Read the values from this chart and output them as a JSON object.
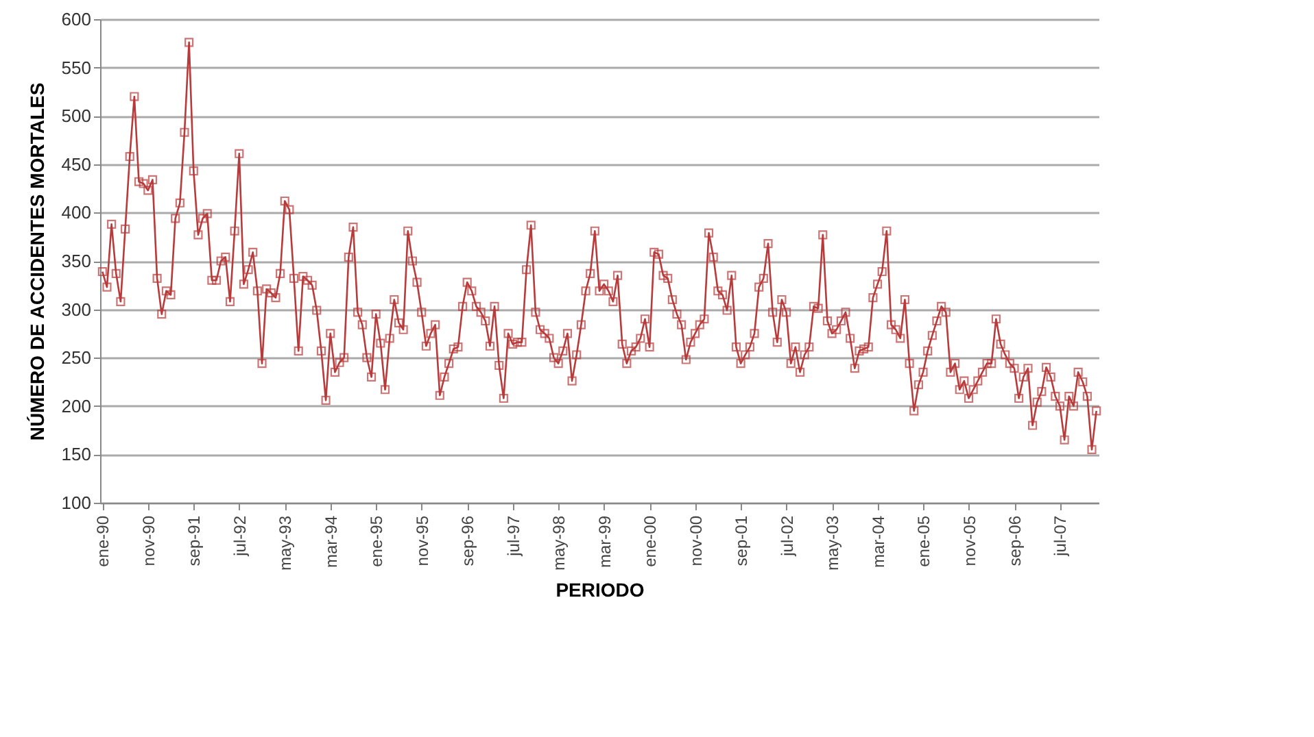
{
  "chart_data": {
    "type": "line",
    "xlabel": "PERIODO",
    "ylabel": "NÚMERO DE ACCIDENTES MORTALES",
    "categories": [
      "ene-90",
      null,
      null,
      null,
      null,
      null,
      null,
      null,
      null,
      null,
      "nov-90",
      null,
      null,
      null,
      null,
      null,
      null,
      null,
      null,
      null,
      "sep-91",
      null,
      null,
      null,
      null,
      null,
      null,
      null,
      null,
      null,
      "jul-92",
      null,
      null,
      null,
      null,
      null,
      null,
      null,
      null,
      null,
      "may-93",
      null,
      null,
      null,
      null,
      null,
      null,
      null,
      null,
      null,
      "mar-94",
      null,
      null,
      null,
      null,
      null,
      null,
      null,
      null,
      null,
      "ene-95",
      null,
      null,
      null,
      null,
      null,
      null,
      null,
      null,
      null,
      "nov-95",
      null,
      null,
      null,
      null,
      null,
      null,
      null,
      null,
      null,
      "sep-96",
      null,
      null,
      null,
      null,
      null,
      null,
      null,
      null,
      null,
      "jul-97",
      null,
      null,
      null,
      null,
      null,
      null,
      null,
      null,
      null,
      "may-98",
      null,
      null,
      null,
      null,
      null,
      null,
      null,
      null,
      null,
      "mar-99",
      null,
      null,
      null,
      null,
      null,
      null,
      null,
      null,
      null,
      "ene-00",
      null,
      null,
      null,
      null,
      null,
      null,
      null,
      null,
      null,
      "nov-00",
      null,
      null,
      null,
      null,
      null,
      null,
      null,
      null,
      null,
      "sep-01",
      null,
      null,
      null,
      null,
      null,
      null,
      null,
      null,
      null,
      "jul-02",
      null,
      null,
      null,
      null,
      null,
      null,
      null,
      null,
      null,
      "may-03",
      null,
      null,
      null,
      null,
      null,
      null,
      null,
      null,
      null,
      "mar-04",
      null,
      null,
      null,
      null,
      null,
      null,
      null,
      null,
      null,
      "ene-05",
      null,
      null,
      null,
      null,
      null,
      null,
      null,
      null,
      null,
      "nov-05",
      null,
      null,
      null,
      null,
      null,
      null,
      null,
      null,
      null,
      "sep-06",
      null,
      null,
      null,
      null,
      null,
      null,
      null,
      null,
      null,
      "jul-07",
      null,
      null,
      null,
      null,
      null,
      null,
      null,
      null
    ],
    "series": [
      {
        "color": "#b83a3a",
        "values": [
          339,
          323,
          388,
          337,
          308,
          383,
          458,
          520,
          432,
          430,
          423,
          434,
          332,
          295,
          319,
          315,
          394,
          410,
          483,
          576,
          443,
          377,
          394,
          399,
          330,
          330,
          350,
          354,
          308,
          381,
          461,
          326,
          341,
          359,
          319,
          244,
          321,
          317,
          312,
          337,
          412,
          403,
          332,
          257,
          334,
          330,
          325,
          299,
          257,
          206,
          275,
          235,
          245,
          250,
          354,
          385,
          297,
          284,
          250,
          230,
          295,
          265,
          217,
          270,
          310,
          286,
          279,
          381,
          350,
          328,
          297,
          262,
          275,
          284,
          211,
          230,
          244,
          259,
          261,
          303,
          328,
          319,
          303,
          297,
          288,
          262,
          303,
          242,
          208,
          275,
          264,
          266,
          266,
          341,
          387,
          297,
          279,
          275,
          270,
          250,
          244,
          257,
          275,
          226,
          253,
          284,
          319,
          337,
          381,
          319,
          326,
          319,
          308,
          335,
          264,
          244,
          257,
          261,
          270,
          290,
          261,
          359,
          357,
          335,
          332,
          310,
          295,
          284,
          248,
          266,
          275,
          284,
          290,
          379,
          354,
          319,
          315,
          299,
          335,
          261,
          244,
          253,
          261,
          275,
          323,
          332,
          368,
          297,
          266,
          310,
          297,
          244,
          261,
          235,
          253,
          261,
          303,
          301,
          377,
          288,
          275,
          279,
          288,
          297,
          270,
          239,
          257,
          259,
          261,
          312,
          326,
          339,
          381,
          284,
          279,
          270,
          310,
          244,
          195,
          222,
          235,
          257,
          273,
          288,
          303,
          297,
          235,
          244,
          217,
          226,
          208,
          217,
          226,
          235,
          244,
          244,
          290,
          264,
          253,
          244,
          239,
          208,
          230,
          239,
          180,
          204,
          215,
          240,
          230,
          210,
          200,
          165,
          210,
          200,
          235,
          225,
          210,
          155,
          195
        ]
      }
    ],
    "ylim": [
      100,
      600
    ],
    "yticks": [
      100,
      150,
      200,
      250,
      300,
      350,
      400,
      450,
      500,
      550,
      600
    ],
    "grid": "y",
    "marker": "square",
    "legend": false
  }
}
